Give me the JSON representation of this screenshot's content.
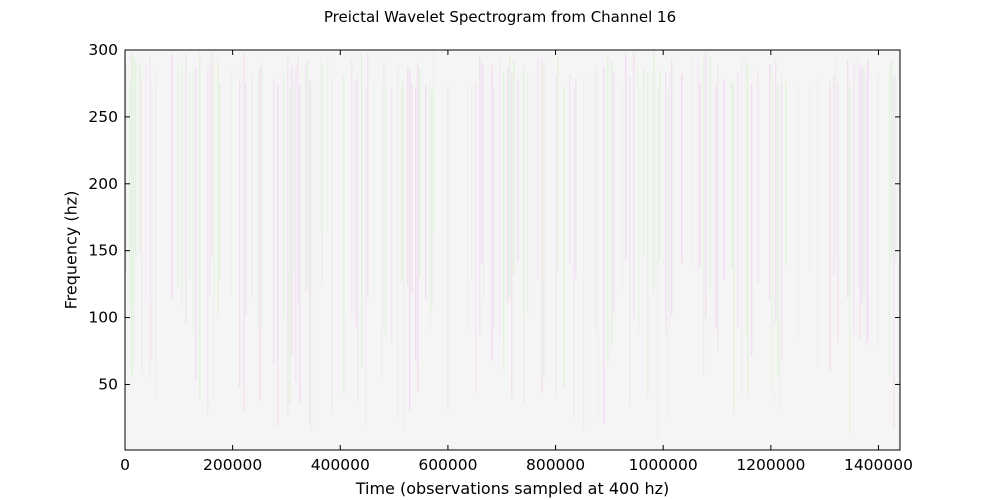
{
  "chart_data": {
    "type": "heatmap",
    "title": "Preictal Wavelet Spectrogram from Channel 16",
    "xlabel": "Time (observations sampled at 400 hz)",
    "ylabel": "Frequency (hz)",
    "xlim": [
      0,
      1440000
    ],
    "ylim": [
      1,
      300
    ],
    "x_ticks": [
      0,
      200000,
      400000,
      600000,
      800000,
      1000000,
      1200000,
      1400000
    ],
    "x_tick_labels": [
      "0",
      "200000",
      "400000",
      "600000",
      "800000",
      "1000000",
      "1200000",
      "1400000"
    ],
    "y_ticks": [
      50,
      100,
      150,
      200,
      250,
      300
    ],
    "y_tick_labels": [
      "50",
      "100",
      "150",
      "200",
      "250",
      "300"
    ],
    "grid": false,
    "colormap": "diverging-green-magenta",
    "colors": {
      "background": "#f5f5f5",
      "low_tint": "#d9f0d3",
      "high_tint": "#f0d3ef",
      "axis": "#000000"
    }
  }
}
